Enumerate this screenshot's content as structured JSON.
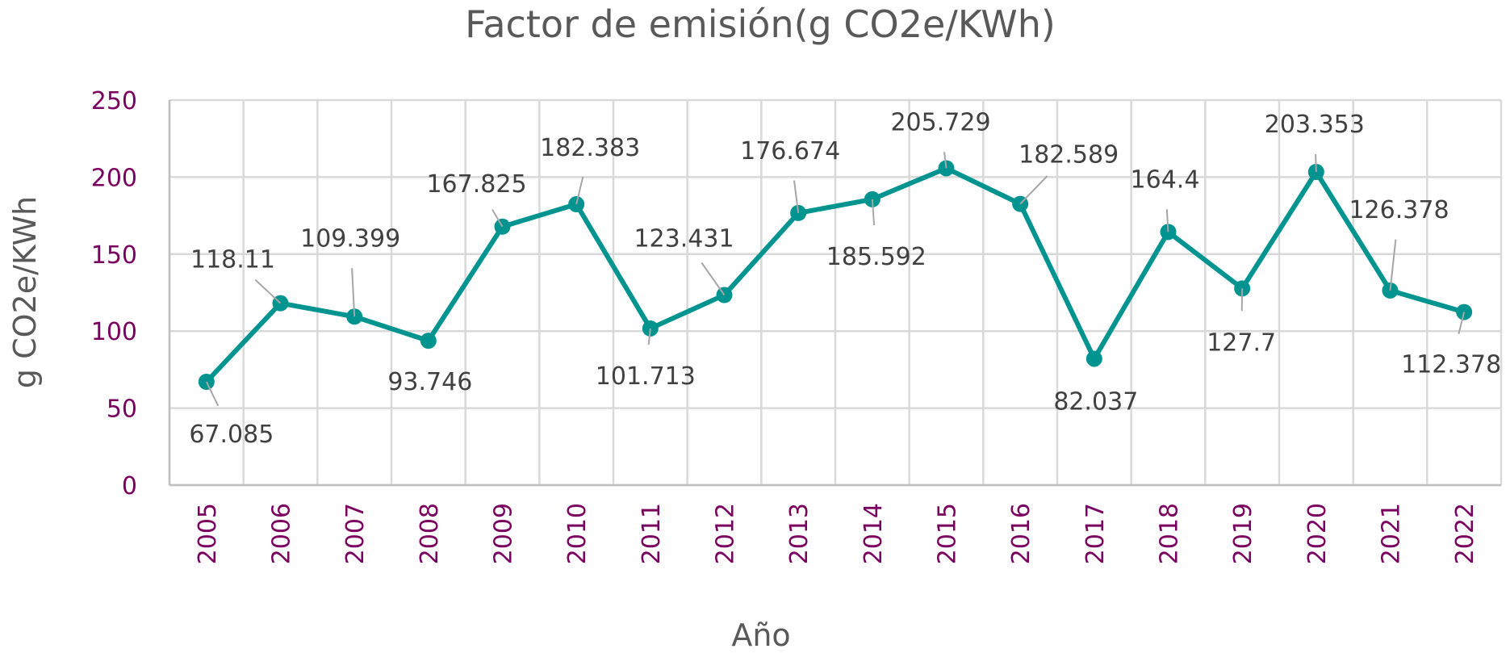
{
  "chart_data": {
    "type": "line",
    "title": "Factor de emisión(g CO2e/KWh)",
    "xlabel": "Año",
    "ylabel": "g CO2e/KWh",
    "categories": [
      "2005",
      "2006",
      "2007",
      "2008",
      "2009",
      "2010",
      "2011",
      "2012",
      "2013",
      "2014",
      "2015",
      "2016",
      "2017",
      "2018",
      "2019",
      "2020",
      "2021",
      "2022"
    ],
    "values": [
      67.085,
      118.11,
      109.399,
      93.746,
      167.825,
      182.383,
      101.713,
      123.431,
      176.674,
      185.592,
      205.729,
      182.589,
      82.037,
      164.4,
      127.7,
      203.353,
      126.378,
      112.378
    ],
    "value_labels": [
      "67.085",
      "118.11",
      "109.399",
      "93.746",
      "167.825",
      "182.383",
      "101.713",
      "123.431",
      "176.674",
      "185.592",
      "205.729",
      "182.589",
      "82.037",
      "164.4",
      "127.7",
      "203.353",
      "126.378",
      "112.378"
    ],
    "ylim": [
      0,
      250
    ],
    "yticks": [
      "0",
      "50",
      "100",
      "150",
      "200",
      "250"
    ],
    "grid": true,
    "legend": "none",
    "colors": {
      "line": "#009490",
      "ticks": "#7a0060",
      "grid": "#d9d9d9",
      "text": "#404040",
      "title": "#595959"
    }
  }
}
